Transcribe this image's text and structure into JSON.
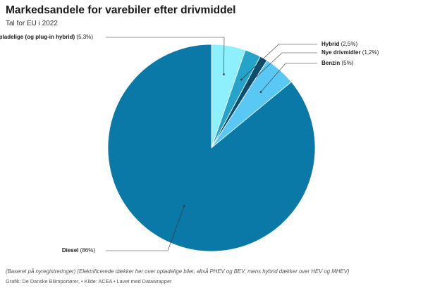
{
  "title": "Markedsandele for varebiler efter drivmiddel",
  "subtitle": "Tal for EU i 2022",
  "chart_data": {
    "type": "pie",
    "unit": "%",
    "slices": [
      {
        "name": "Opladelige (og plug-in hybrid)",
        "value": 5.3,
        "label": "(5,3%)",
        "color": "#8ef0fc"
      },
      {
        "name": "Hybrid",
        "value": 2.5,
        "label": "(2,5%)",
        "color": "#26a3c8"
      },
      {
        "name": "Nye drivmidler",
        "value": 1.2,
        "label": "(1,2%)",
        "color": "#0c4e6e"
      },
      {
        "name": "Benzin",
        "value": 5,
        "label": "(5%)",
        "color": "#5ac8f5"
      },
      {
        "name": "Diesel",
        "value": 86,
        "label": "(86%)",
        "color": "#0a79a7"
      }
    ]
  },
  "footer": {
    "note": "(Baseret på nyregistreringer) (Elektrificerede dækker her over opladelige biler, altså PHEV og BEV, mens hybrid dækker over HEV og MHEV)",
    "credit": "Grafik: De Danske Bilimportører, • Kilde: ACEA • Lavet med Datawrapper"
  }
}
